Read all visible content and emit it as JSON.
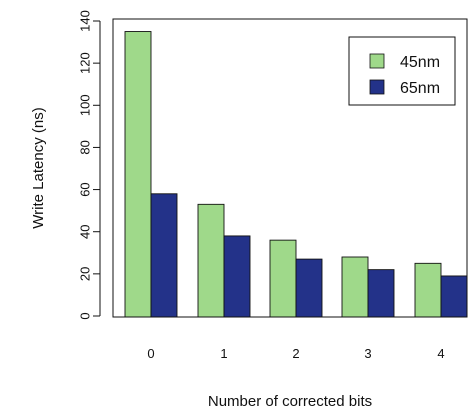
{
  "chart_data": {
    "type": "bar",
    "categories": [
      "0",
      "1",
      "2",
      "3",
      "4"
    ],
    "series": [
      {
        "name": "45nm",
        "values": [
          135,
          53,
          36,
          28,
          25
        ],
        "color": "#9fd98a"
      },
      {
        "name": "65nm",
        "values": [
          58,
          38,
          27,
          22,
          19
        ],
        "color": "#233289"
      }
    ],
    "title": "",
    "xlabel": "Number of corrected bits",
    "ylabel": "Write Latency (ns)",
    "ylim": [
      0,
      140
    ],
    "yticks": [
      0,
      20,
      40,
      60,
      80,
      100,
      120,
      140
    ],
    "grid": false,
    "legend_position": "top-right"
  }
}
